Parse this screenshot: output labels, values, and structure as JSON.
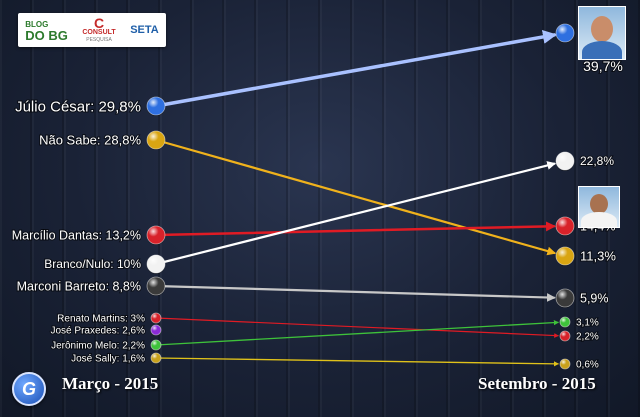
{
  "logos": {
    "blog_top": "BLOG",
    "blog_bottom": "DO BG",
    "consult_name": "CONSULT",
    "consult_sub": "PESQUISA",
    "seta": "SETA"
  },
  "footer": {
    "left_period": "Março - 2015",
    "right_period": "Setembro - 2015",
    "badge_letter": "G"
  },
  "chart_data": {
    "type": "line",
    "periods": [
      "Março - 2015",
      "Setembro - 2015"
    ],
    "series": [
      {
        "name": "Júlio César",
        "values": [
          29.8,
          39.7
        ],
        "left_label": "Júlio César: 29,8%",
        "right_label": "39,7%",
        "color": "#2e6fe0",
        "line": "#a9c1ff"
      },
      {
        "name": "Não Sabe",
        "values": [
          28.8,
          11.3
        ],
        "left_label": "Não Sabe: 28,8%",
        "right_label": "11,3%",
        "color": "#d9a512",
        "line": "#f0b21c"
      },
      {
        "name": "Marcílio Dantas",
        "values": [
          13.2,
          14.4
        ],
        "left_label": "Marcílio Dantas: 13,2%",
        "right_label": "14,4%",
        "color": "#d8222a",
        "line": "#e01b24"
      },
      {
        "name": "Branco/Nulo",
        "values": [
          10,
          22.8
        ],
        "left_label": "Branco/Nulo: 10%",
        "right_label": "22,8%",
        "color": "#f2f2f2",
        "line": "#ffffff"
      },
      {
        "name": "Marconi Barreto",
        "values": [
          8.8,
          5.9
        ],
        "left_label": "Marconi Barreto: 8,8%",
        "right_label": "5,9%",
        "color": "#3a3a3a",
        "line": "#c8c8c8"
      },
      {
        "name": "Renato Martins",
        "values": [
          3,
          2.2
        ],
        "left_label": "Renato Martins: 3%",
        "right_label": "2,2%",
        "color": "#d8222a",
        "line": "#e01b24"
      },
      {
        "name": "José Praxedes",
        "values": [
          2.6,
          null
        ],
        "left_label": "José Praxedes: 2,6%",
        "right_label": "",
        "color": "#8a2bd6",
        "line": ""
      },
      {
        "name": "Jerônimo Melo",
        "values": [
          2.2,
          3.1
        ],
        "left_label": "Jerônimo Melo: 2,2%",
        "right_label": "3,1%",
        "color": "#3ec23a",
        "line": "#3ec23a"
      },
      {
        "name": "José Sally",
        "values": [
          1.6,
          0.6
        ],
        "left_label": "José Sally: 1,6%",
        "right_label": "0,6%",
        "color": "#c8a11c",
        "line": "#e0c21a"
      }
    ]
  }
}
